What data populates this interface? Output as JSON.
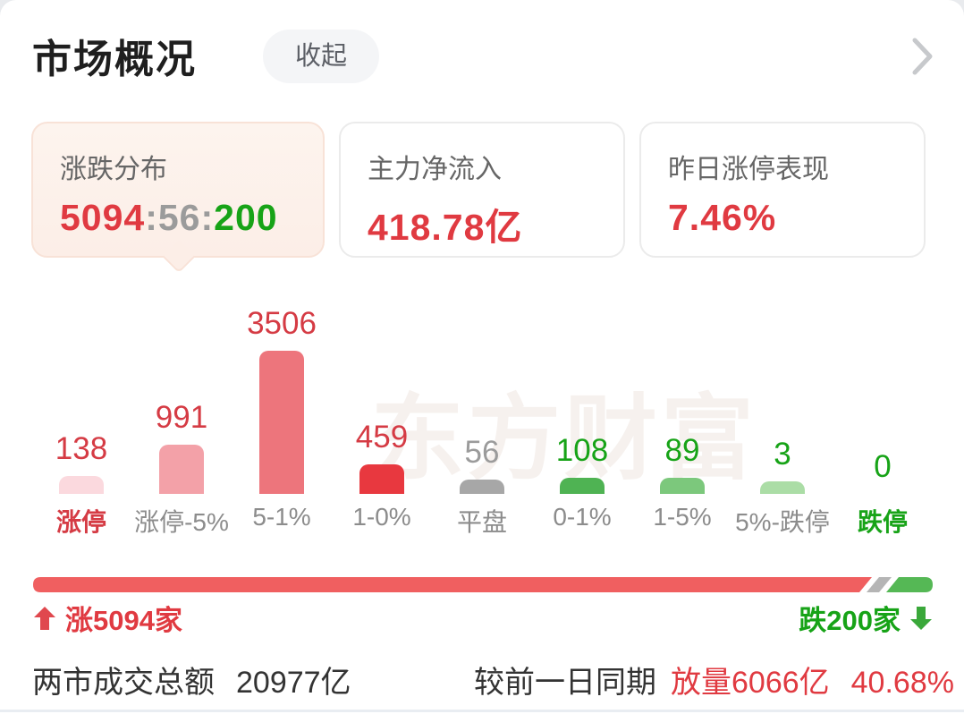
{
  "header": {
    "title": "市场概况",
    "collapse_label": "收起",
    "chevron_icon": "chevron-right"
  },
  "cards": [
    {
      "label": "涨跌分布",
      "active": true,
      "value_parts": [
        {
          "text": "5094",
          "color": "#e03a41"
        },
        {
          "text": ":",
          "color": "#9b9b9b"
        },
        {
          "text": "56",
          "color": "#9b9b9b"
        },
        {
          "text": ":",
          "color": "#9b9b9b"
        },
        {
          "text": "200",
          "color": "#17a317"
        }
      ]
    },
    {
      "label": "主力净流入",
      "value": "418.78亿",
      "value_color": "#e03a41"
    },
    {
      "label": "昨日涨停表现",
      "value": "7.46%",
      "value_color": "#e03a41"
    }
  ],
  "chart_data": {
    "type": "bar",
    "title": "涨跌分布",
    "categories": [
      "涨停",
      "涨停-5%",
      "5-1%",
      "1-0%",
      "平盘",
      "0-1%",
      "1-5%",
      "5%-跌停",
      "跌停"
    ],
    "values": [
      138,
      991,
      3506,
      459,
      56,
      108,
      89,
      3,
      0
    ],
    "bar_colors": [
      "#fbd9de",
      "#f3a1a8",
      "#ed757c",
      "#e8383f",
      "#a7a7a7",
      "#4fb353",
      "#7cc87c",
      "#abdda6",
      "transparent"
    ],
    "value_colors": [
      "#d53b44",
      "#d53b44",
      "#d53b44",
      "#d53b44",
      "#9b9b9b",
      "#17a317",
      "#17a317",
      "#17a317",
      "#17a317"
    ],
    "label_colors": [
      "#d53b44",
      "#8c8c8c",
      "#8c8c8c",
      "#8c8c8c",
      "#8c8c8c",
      "#8c8c8c",
      "#8c8c8c",
      "#8c8c8c",
      "#17a317"
    ],
    "ylim": [
      0,
      3506
    ],
    "grid": false,
    "legend": false,
    "watermark": "东方财富"
  },
  "strength_bar": {
    "advance": 5094,
    "flat": 56,
    "decline": 200,
    "advance_label": "涨5094家",
    "decline_label": "跌200家",
    "advance_color": "#f05f60",
    "flat_color": "#b5b5b5",
    "decline_color": "#55b855",
    "up_icon": "arrow-up",
    "down_icon": "arrow-down"
  },
  "footer": {
    "turnover_label": "两市成交总额",
    "turnover_value": "20977亿",
    "compare_label": "较前一日同期",
    "volume_change": "放量6066亿",
    "volume_pct": "40.68%",
    "highlight_color": "#e03a41"
  }
}
